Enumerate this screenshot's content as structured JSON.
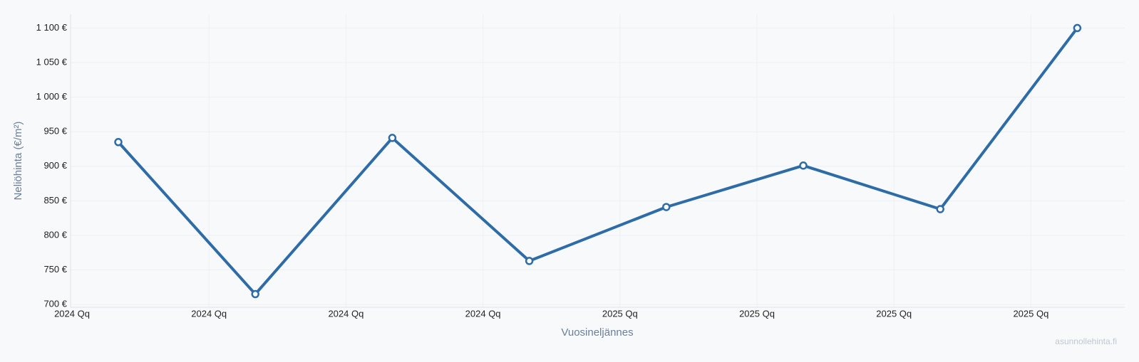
{
  "chart_data": {
    "type": "line",
    "y_label": "Neliöhinta (€/m²)",
    "x_label": "Vuosineljännes",
    "watermark": "asunnollehinta.fi",
    "categories": [
      "2024 Qq",
      "2024 Qq",
      "2024 Qq",
      "2024 Qq",
      "2025 Qq",
      "2025 Qq",
      "2025 Qq",
      "2025 Qq"
    ],
    "series": [
      {
        "name": "Neliöhinta",
        "color": "#2e6ca8",
        "values": [
          935,
          715,
          941,
          763,
          841,
          901,
          838,
          1100
        ]
      }
    ],
    "ylim": [
      696,
      1120
    ],
    "yticks": [
      {
        "value": 700,
        "label": "700 €"
      },
      {
        "value": 750,
        "label": "750 €"
      },
      {
        "value": 800,
        "label": "800 €"
      },
      {
        "value": 850,
        "label": "850 €"
      },
      {
        "value": 900,
        "label": "900 €"
      },
      {
        "value": 950,
        "label": "950 €"
      },
      {
        "value": 1000,
        "label": "1 000 €"
      },
      {
        "value": 1050,
        "label": "1 050 €"
      },
      {
        "value": 1100,
        "label": "1 100 €"
      }
    ],
    "grid": true
  }
}
